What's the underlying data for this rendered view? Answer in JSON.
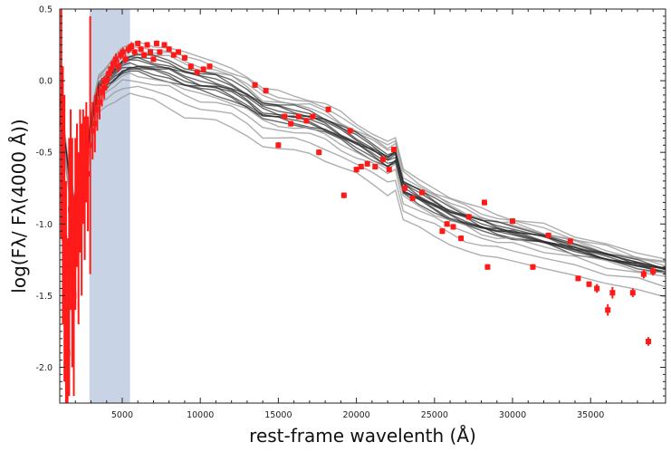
{
  "chart_data": {
    "type": "line",
    "title": "",
    "xlabel": "rest-frame wavelenth (Å)",
    "ylabel": "log(Fλ/ Fλ(4000 Å))",
    "xlim": [
      1000,
      39800
    ],
    "ylim": [
      -2.25,
      0.5
    ],
    "xticks": [
      5000,
      10000,
      15000,
      20000,
      25000,
      30000,
      35000
    ],
    "xtick_labels": [
      "5000",
      "10000",
      "15000",
      "20000",
      "25000",
      "30000",
      "35000"
    ],
    "yticks": [
      0.5,
      0.0,
      -0.5,
      -1.0,
      -1.5,
      -2.0
    ],
    "ytick_labels": [
      "0.5",
      "0.0",
      "-0.5",
      "-1.0",
      "-1.5",
      "-2.0"
    ],
    "grid": false,
    "shaded_band": {
      "x0": 2900,
      "x1": 5500,
      "color": "#c8d4e6"
    },
    "model_color": "#555555",
    "observed_color": "#ff1a1a",
    "model_template": {
      "x": [
        1000,
        1500,
        2000,
        2500,
        3000,
        3500,
        4000,
        4500,
        5000,
        5500,
        6000,
        7000,
        8000,
        9000,
        10000,
        11000,
        12000,
        13000,
        14000,
        15000,
        16000,
        17000,
        18000,
        19000,
        20000,
        21000,
        22000,
        22500,
        23000,
        24000,
        25000,
        26000,
        27000,
        28000,
        29000,
        30000,
        32000,
        34000,
        36000,
        38000,
        39800
      ],
      "y": [
        -0.15,
        -0.6,
        -0.95,
        -0.75,
        -0.3,
        -0.05,
        0.0,
        0.05,
        0.1,
        0.12,
        0.12,
        0.1,
        0.08,
        0.03,
        0.0,
        -0.02,
        -0.06,
        -0.12,
        -0.2,
        -0.22,
        -0.24,
        -0.26,
        -0.3,
        -0.36,
        -0.42,
        -0.48,
        -0.55,
        -0.52,
        -0.74,
        -0.8,
        -0.86,
        -0.92,
        -0.96,
        -1.0,
        -1.03,
        -1.05,
        -1.1,
        -1.16,
        -1.22,
        -1.27,
        -1.31
      ]
    },
    "model_offsets": [
      0.17,
      0.14,
      0.11,
      0.09,
      0.07,
      0.05,
      0.035,
      0.02,
      0.0,
      -0.015,
      -0.03,
      -0.045,
      -0.06,
      -0.08,
      -0.1,
      -0.14,
      -0.2,
      -0.28
    ],
    "series": [
      {
        "points": [
          {
            "x": 1100,
            "y": -0.3,
            "err": 0.8
          },
          {
            "x": 1200,
            "y": -0.8,
            "err": 0.9
          },
          {
            "x": 1300,
            "y": -1.1,
            "err": 1.0
          },
          {
            "x": 1400,
            "y": -1.6,
            "err": 0.9
          },
          {
            "x": 1500,
            "y": -1.9,
            "err": 0.8
          },
          {
            "x": 1600,
            "y": -1.3,
            "err": 0.9
          },
          {
            "x": 1700,
            "y": -0.9,
            "err": 0.7
          },
          {
            "x": 1800,
            "y": -1.2,
            "err": 0.8
          },
          {
            "x": 1900,
            "y": -1.5,
            "err": 0.7
          },
          {
            "x": 2000,
            "y": -1.0,
            "err": 0.6
          },
          {
            "x": 2100,
            "y": -0.8,
            "err": 0.5
          },
          {
            "x": 2200,
            "y": -1.1,
            "err": 0.6
          },
          {
            "x": 2300,
            "y": -0.7,
            "err": 0.5
          },
          {
            "x": 2400,
            "y": -0.9,
            "err": 0.6
          },
          {
            "x": 2500,
            "y": -0.6,
            "err": 0.4
          },
          {
            "x": 2600,
            "y": -0.75,
            "err": 0.5
          },
          {
            "x": 2700,
            "y": -0.5,
            "err": 0.35
          },
          {
            "x": 2800,
            "y": -0.65,
            "err": 0.4
          },
          {
            "x": 2950,
            "y": -0.45,
            "err": 0.9
          },
          {
            "x": 3100,
            "y": -0.35,
            "err": 0.2
          },
          {
            "x": 3250,
            "y": -0.3,
            "err": 0.2
          },
          {
            "x": 3400,
            "y": -0.2,
            "err": 0.15
          },
          {
            "x": 3550,
            "y": -0.15,
            "err": 0.12
          },
          {
            "x": 3700,
            "y": -0.08,
            "err": 0.1
          },
          {
            "x": 3850,
            "y": -0.05,
            "err": 0.08
          },
          {
            "x": 4000,
            "y": 0.0,
            "err": 0.06
          },
          {
            "x": 4150,
            "y": 0.05,
            "err": 0.05
          },
          {
            "x": 4300,
            "y": 0.08,
            "err": 0.05
          },
          {
            "x": 4450,
            "y": 0.12,
            "err": 0.04
          },
          {
            "x": 4600,
            "y": 0.15,
            "err": 0.04
          },
          {
            "x": 4750,
            "y": 0.1,
            "err": 0.04
          },
          {
            "x": 4900,
            "y": 0.18,
            "err": 0.03
          },
          {
            "x": 5050,
            "y": 0.2,
            "err": 0.03
          },
          {
            "x": 5200,
            "y": 0.15,
            "err": 0.03
          },
          {
            "x": 5400,
            "y": 0.22,
            "err": 0.03
          },
          {
            "x": 5600,
            "y": 0.24,
            "err": 0.03
          },
          {
            "x": 5800,
            "y": 0.2,
            "err": 0.02
          },
          {
            "x": 6000,
            "y": 0.26,
            "err": 0.02
          },
          {
            "x": 6200,
            "y": 0.22,
            "err": 0.02
          },
          {
            "x": 6400,
            "y": 0.18,
            "err": 0.02
          },
          {
            "x": 6600,
            "y": 0.25,
            "err": 0.02
          },
          {
            "x": 6800,
            "y": 0.2,
            "err": 0.02
          },
          {
            "x": 7000,
            "y": 0.15,
            "err": 0.02
          },
          {
            "x": 7200,
            "y": 0.26,
            "err": 0.02
          },
          {
            "x": 7400,
            "y": 0.2,
            "err": 0.02
          },
          {
            "x": 7700,
            "y": 0.25,
            "err": 0.02
          },
          {
            "x": 8000,
            "y": 0.22,
            "err": 0.02
          },
          {
            "x": 8300,
            "y": 0.18,
            "err": 0.02
          },
          {
            "x": 8600,
            "y": 0.2,
            "err": 0.02
          },
          {
            "x": 9000,
            "y": 0.16,
            "err": 0.02
          },
          {
            "x": 9400,
            "y": 0.1,
            "err": 0.02
          },
          {
            "x": 9800,
            "y": 0.06,
            "err": 0.02
          },
          {
            "x": 10200,
            "y": 0.08,
            "err": 0.02
          },
          {
            "x": 10600,
            "y": 0.1,
            "err": 0.02
          },
          {
            "x": 13500,
            "y": -0.03,
            "err": 0.02
          },
          {
            "x": 14200,
            "y": -0.07,
            "err": 0.02
          },
          {
            "x": 15000,
            "y": -0.45,
            "err": 0.02
          },
          {
            "x": 15400,
            "y": -0.25,
            "err": 0.02
          },
          {
            "x": 15800,
            "y": -0.3,
            "err": 0.02
          },
          {
            "x": 16300,
            "y": -0.25,
            "err": 0.02
          },
          {
            "x": 16800,
            "y": -0.28,
            "err": 0.02
          },
          {
            "x": 17200,
            "y": -0.25,
            "err": 0.02
          },
          {
            "x": 17600,
            "y": -0.5,
            "err": 0.02
          },
          {
            "x": 18200,
            "y": -0.2,
            "err": 0.02
          },
          {
            "x": 19200,
            "y": -0.8,
            "err": 0.02
          },
          {
            "x": 19600,
            "y": -0.35,
            "err": 0.02
          },
          {
            "x": 20000,
            "y": -0.62,
            "err": 0.02
          },
          {
            "x": 20300,
            "y": -0.6,
            "err": 0.02
          },
          {
            "x": 20700,
            "y": -0.58,
            "err": 0.02
          },
          {
            "x": 21200,
            "y": -0.6,
            "err": 0.02
          },
          {
            "x": 21700,
            "y": -0.55,
            "err": 0.02
          },
          {
            "x": 22100,
            "y": -0.62,
            "err": 0.02
          },
          {
            "x": 22400,
            "y": -0.48,
            "err": 0.02
          },
          {
            "x": 23100,
            "y": -0.75,
            "err": 0.02
          },
          {
            "x": 23600,
            "y": -0.82,
            "err": 0.02
          },
          {
            "x": 24200,
            "y": -0.78,
            "err": 0.02
          },
          {
            "x": 25500,
            "y": -1.05,
            "err": 0.02
          },
          {
            "x": 25800,
            "y": -1.0,
            "err": 0.02
          },
          {
            "x": 26200,
            "y": -1.02,
            "err": 0.02
          },
          {
            "x": 26700,
            "y": -1.1,
            "err": 0.02
          },
          {
            "x": 27200,
            "y": -0.95,
            "err": 0.02
          },
          {
            "x": 28200,
            "y": -0.85,
            "err": 0.02
          },
          {
            "x": 28400,
            "y": -1.3,
            "err": 0.02
          },
          {
            "x": 30000,
            "y": -0.98,
            "err": 0.02
          },
          {
            "x": 31300,
            "y": -1.3,
            "err": 0.02
          },
          {
            "x": 32300,
            "y": -1.08,
            "err": 0.02
          },
          {
            "x": 33700,
            "y": -1.12,
            "err": 0.02
          },
          {
            "x": 34200,
            "y": -1.38,
            "err": 0.02
          },
          {
            "x": 34900,
            "y": -1.42,
            "err": 0.02
          },
          {
            "x": 35400,
            "y": -1.45,
            "err": 0.03
          },
          {
            "x": 36100,
            "y": -1.6,
            "err": 0.04
          },
          {
            "x": 36400,
            "y": -1.48,
            "err": 0.04
          },
          {
            "x": 37700,
            "y": -1.48,
            "err": 0.03
          },
          {
            "x": 38400,
            "y": -1.35,
            "err": 0.03
          },
          {
            "x": 38700,
            "y": -1.82,
            "err": 0.03
          },
          {
            "x": 39000,
            "y": -1.33,
            "err": 0.03
          }
        ]
      }
    ]
  }
}
